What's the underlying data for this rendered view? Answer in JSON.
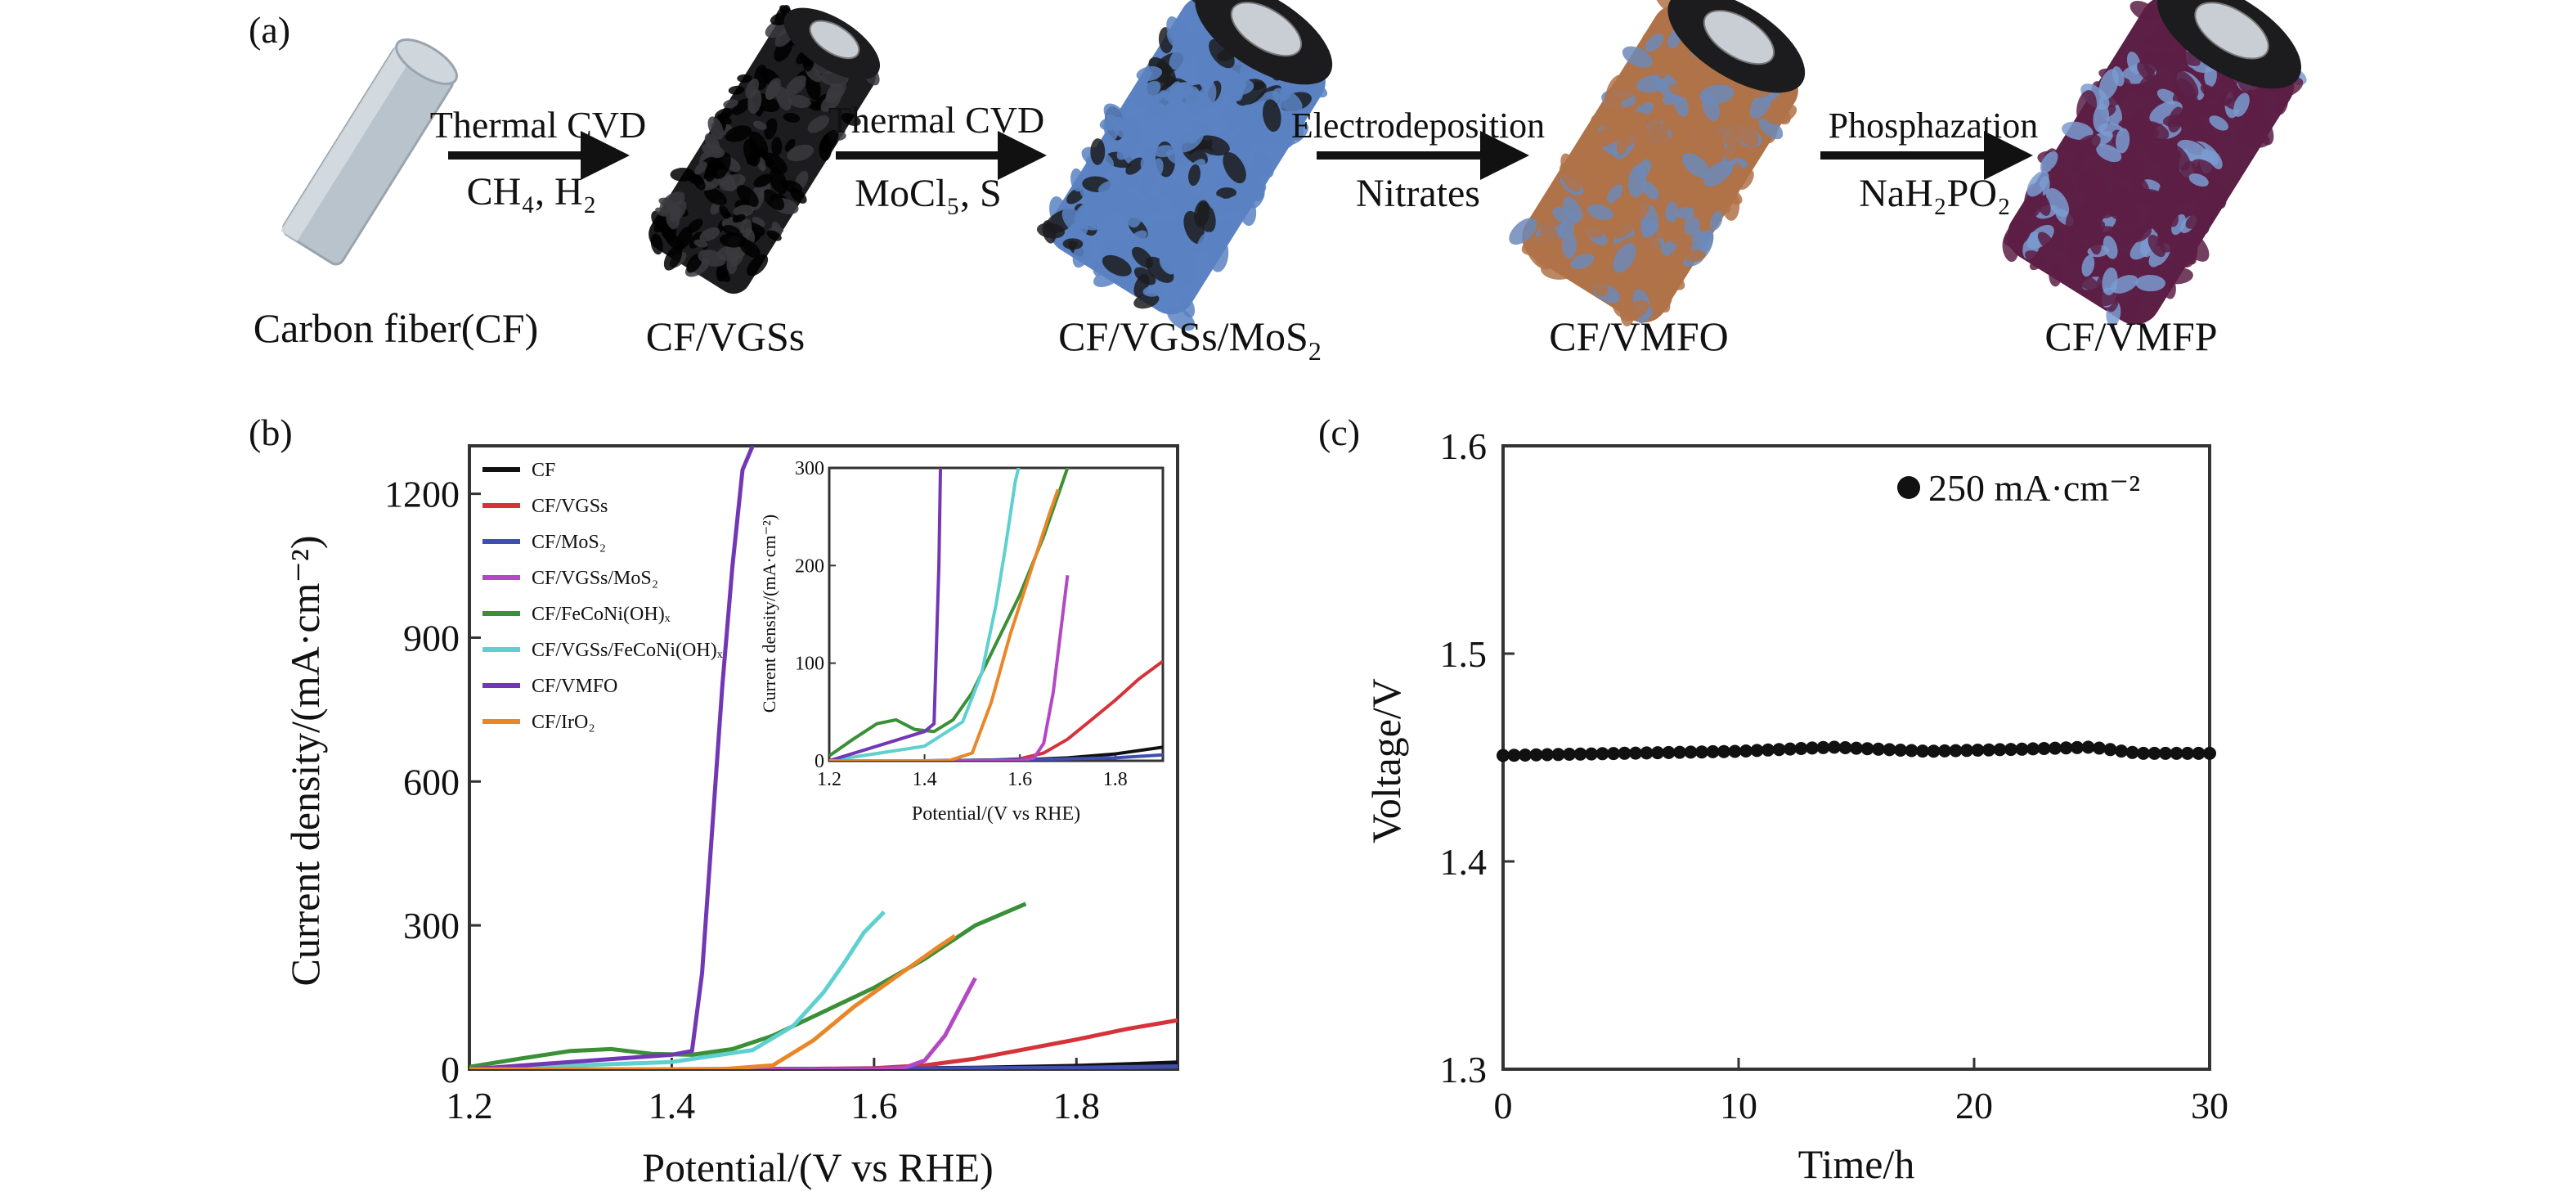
{
  "panel_a": {
    "label": "(a)",
    "stages": [
      {
        "name": "Carbon fiber(CF)"
      },
      {
        "name": "CF/VGSs"
      },
      {
        "name": "CF/VGSs/MoS",
        "sub": "2"
      },
      {
        "name": "CF/VMFO"
      },
      {
        "name": "CF/VMFP"
      }
    ],
    "arrows": [
      {
        "top": "Thermal CVD",
        "bottom": "CH₄, H₂"
      },
      {
        "top": "Thermal CVD",
        "bottom": "MoCl₅, S"
      },
      {
        "top": "Electrodeposition",
        "bottom": "Nitrates"
      },
      {
        "top": "Phosphazation",
        "bottom": "NaH₂PO₂"
      }
    ],
    "colors": {
      "cf": "#b9c3cc",
      "vgs": "#1c1c1e",
      "mos2": "#5b82c2",
      "vmfo": "#b07248",
      "vmfp": "#5c1f45"
    }
  },
  "chart_data": [
    {
      "type": "line",
      "label": "(b)",
      "xlabel": "Potential/(V vs RHE)",
      "ylabel": "Current density/(mA·cm⁻²)",
      "xlim": [
        1.2,
        1.9
      ],
      "ylim": [
        0,
        1300
      ],
      "xticks": [
        "1.2",
        "1.4",
        "1.6",
        "1.8"
      ],
      "yticks": [
        "0",
        "300",
        "600",
        "900",
        "1200"
      ],
      "legend_position": "top-left",
      "series": [
        {
          "name": "CF",
          "color": "#111111",
          "x": [
            1.2,
            1.4,
            1.6,
            1.7,
            1.8,
            1.9
          ],
          "y": [
            0,
            0,
            1,
            3,
            7,
            14
          ]
        },
        {
          "name": "CF/VGSs",
          "color": "#d6323a",
          "x": [
            1.2,
            1.5,
            1.6,
            1.65,
            1.7,
            1.75,
            1.8,
            1.85,
            1.9
          ],
          "y": [
            0,
            0,
            2,
            8,
            22,
            42,
            62,
            84,
            102
          ]
        },
        {
          "name": "CF/MoS₂",
          "color": "#3e4fb0",
          "x": [
            1.2,
            1.4,
            1.6,
            1.8,
            1.9
          ],
          "y": [
            0,
            0,
            1,
            3,
            6
          ]
        },
        {
          "name": "CF/VGSs/MoS₂",
          "color": "#b347c4",
          "x": [
            1.2,
            1.6,
            1.63,
            1.65,
            1.67,
            1.69,
            1.7
          ],
          "y": [
            0,
            0,
            3,
            18,
            70,
            150,
            190
          ]
        },
        {
          "name": "CF/FeCoNi(OH)ₓ",
          "color": "#3b8f37",
          "x": [
            1.2,
            1.25,
            1.3,
            1.34,
            1.38,
            1.42,
            1.46,
            1.5,
            1.55,
            1.6,
            1.65,
            1.7,
            1.75
          ],
          "y": [
            5,
            22,
            38,
            42,
            32,
            30,
            42,
            70,
            120,
            170,
            230,
            300,
            345
          ]
        },
        {
          "name": "CF/VGSs/FeCoNi(OH)ₓ",
          "color": "#5fd0d0",
          "x": [
            1.2,
            1.4,
            1.48,
            1.52,
            1.55,
            1.57,
            1.59,
            1.61
          ],
          "y": [
            0,
            15,
            40,
            90,
            160,
            220,
            285,
            328
          ]
        },
        {
          "name": "CF/VMFO",
          "color": "#7237b5",
          "x": [
            1.2,
            1.4,
            1.42,
            1.43,
            1.44,
            1.45,
            1.46,
            1.47,
            1.48
          ],
          "y": [
            0,
            30,
            38,
            200,
            500,
            800,
            1050,
            1250,
            1300
          ]
        },
        {
          "name": "CF/IrO₂",
          "color": "#e98728",
          "x": [
            1.2,
            1.45,
            1.5,
            1.54,
            1.58,
            1.62,
            1.66,
            1.68
          ],
          "y": [
            0,
            0,
            8,
            60,
            130,
            190,
            250,
            278
          ]
        }
      ],
      "inset": {
        "xlim": [
          1.2,
          1.9
        ],
        "ylim": [
          0,
          300
        ],
        "xticks": [
          "1.2",
          "1.4",
          "1.6",
          "1.8"
        ],
        "yticks": [
          "0",
          "100",
          "200",
          "300"
        ],
        "xlabel": "Potential/(V vs RHE)",
        "ylabel": "Current density/(mA·cm⁻²)"
      }
    },
    {
      "type": "scatter",
      "label": "(c)",
      "xlabel": "Time/h",
      "ylabel": "Voltage/V",
      "xlim": [
        0,
        30
      ],
      "ylim": [
        1.3,
        1.6
      ],
      "xticks": [
        "0",
        "10",
        "20",
        "30"
      ],
      "yticks": [
        "1.3",
        "1.4",
        "1.5",
        "1.6"
      ],
      "legend_position": "top-right",
      "series": [
        {
          "name": "250 mA·cm⁻²",
          "color": "#111111",
          "x": [
            0,
            5,
            10,
            14,
            18,
            22,
            25,
            27,
            30
          ],
          "y": [
            1.451,
            1.452,
            1.453,
            1.455,
            1.453,
            1.454,
            1.455,
            1.452,
            1.452
          ]
        }
      ]
    }
  ]
}
